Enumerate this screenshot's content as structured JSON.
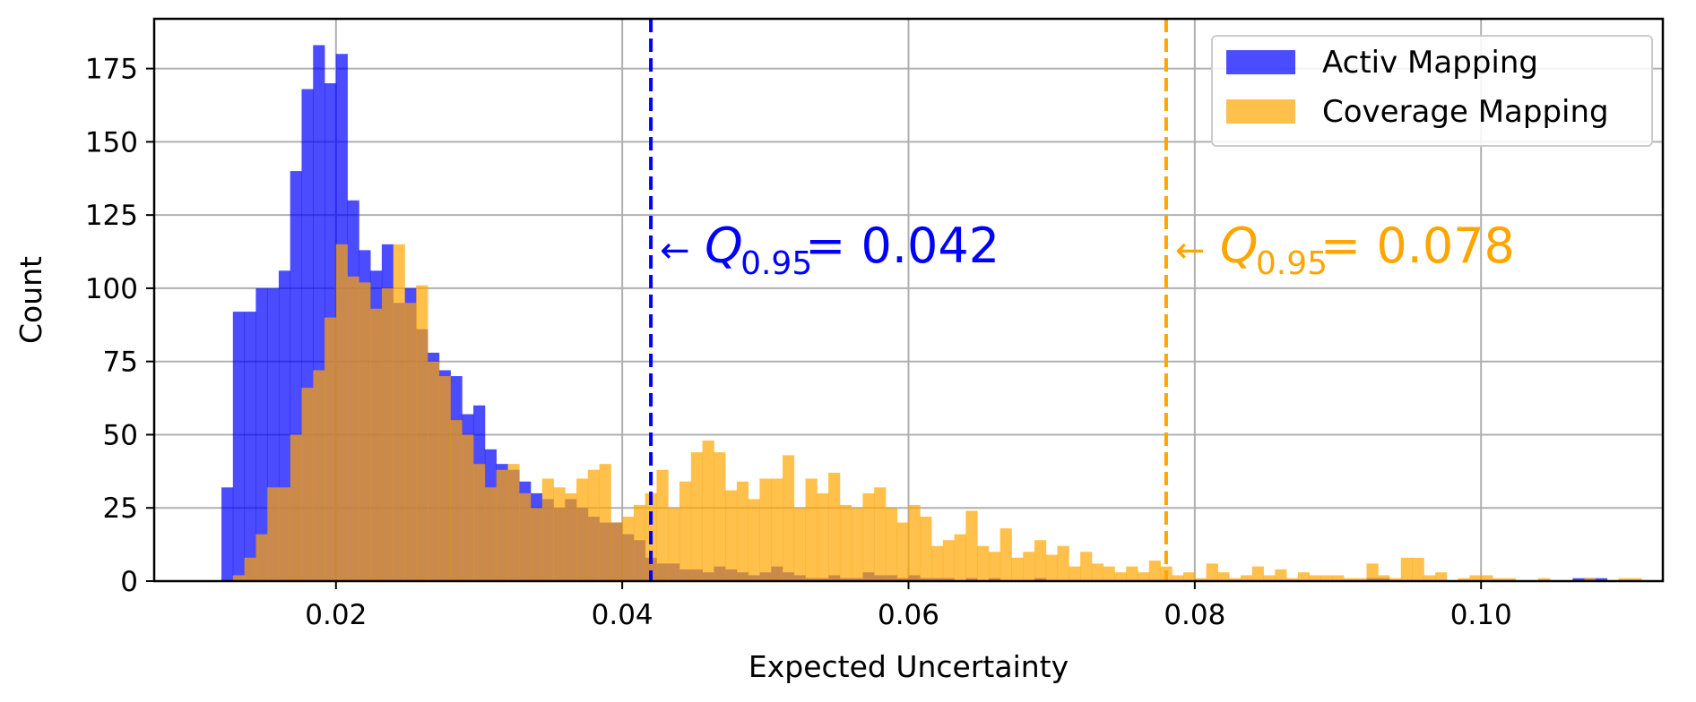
{
  "chart_data": {
    "type": "histogram",
    "xlabel": "Expected Uncertainty",
    "ylabel": "Count",
    "xlim": [
      0.0073,
      0.1127
    ],
    "ylim": [
      0,
      192
    ],
    "xticks": [
      0.02,
      0.04,
      0.06,
      0.08,
      0.1
    ],
    "xtick_labels": [
      "0.02",
      "0.04",
      "0.06",
      "0.08",
      "0.10"
    ],
    "yticks": [
      0,
      25,
      50,
      75,
      100,
      125,
      150,
      175
    ],
    "ytick_labels": [
      "0",
      "25",
      "50",
      "75",
      "100",
      "125",
      "150",
      "175"
    ],
    "grid": true,
    "legend_position": "top-right",
    "bin_width": 0.0008,
    "series": [
      {
        "name": "Activ Mapping",
        "color": "#0000ff",
        "opacity": 0.7,
        "start": 0.012,
        "counts": [
          32,
          92,
          92,
          100,
          100,
          106,
          140,
          168,
          183,
          170,
          180,
          130,
          113,
          106,
          115,
          95,
          100,
          86,
          78,
          72,
          70,
          57,
          60,
          45,
          40,
          38,
          34,
          30,
          28,
          25,
          28,
          25,
          22,
          20,
          20,
          16,
          14,
          8,
          6,
          6,
          4,
          4,
          3,
          5,
          4,
          3,
          2,
          3,
          5,
          3,
          2,
          1,
          1,
          2,
          1,
          1,
          3,
          2,
          2,
          1,
          2,
          1,
          1,
          1,
          0,
          1,
          0,
          1,
          0,
          0,
          0,
          1,
          0,
          0,
          0,
          0,
          0,
          0,
          0,
          0,
          0,
          0,
          0,
          0,
          0,
          0,
          0,
          0,
          0,
          0,
          0,
          0,
          0,
          0,
          0,
          0,
          0,
          0,
          0,
          0,
          1,
          1,
          0,
          0,
          0,
          0,
          0,
          0,
          0,
          0,
          0,
          0,
          0,
          0,
          0,
          0,
          0,
          0,
          1,
          1,
          1
        ],
        "quantile_label": "Q",
        "quantile_subscript": "0.95",
        "quantile_value": "= 0.042",
        "quantile_x": 0.042
      },
      {
        "name": "Coverage Mapping",
        "color": "#ffa500",
        "opacity": 0.7,
        "start": 0.012,
        "counts": [
          0,
          2,
          8,
          16,
          32,
          32,
          50,
          66,
          72,
          90,
          115,
          104,
          102,
          93,
          100,
          115,
          95,
          101,
          75,
          70,
          55,
          50,
          40,
          32,
          38,
          40,
          30,
          25,
          35,
          32,
          30,
          35,
          38,
          40,
          20,
          22,
          26,
          30,
          38,
          25,
          34,
          44,
          48,
          44,
          31,
          34,
          28,
          35,
          35,
          43,
          25,
          35,
          30,
          37,
          26,
          25,
          30,
          32,
          25,
          20,
          26,
          22,
          12,
          14,
          16,
          24,
          12,
          10,
          18,
          8,
          10,
          14,
          9,
          12,
          5,
          10,
          6,
          5,
          3,
          5,
          3,
          7,
          5,
          2,
          3,
          1,
          6,
          3,
          1,
          2,
          5,
          2,
          4,
          1,
          3,
          2,
          2,
          2,
          1,
          1,
          6,
          2,
          1,
          8,
          8,
          2,
          3,
          0,
          1,
          2,
          2,
          1,
          1,
          0,
          0,
          1,
          0,
          0,
          0,
          1,
          0,
          0,
          1,
          1,
          0,
          0,
          0
        ]
      }
    ],
    "annotations": [
      {
        "arrow": "←",
        "text": "Q",
        "subscript": "0.95",
        "value": "= 0.042",
        "color": "#0000ff",
        "x": 0.042
      },
      {
        "arrow": "←",
        "text": "Q",
        "subscript": "0.95",
        "value": "= 0.078",
        "color": "#ffa500",
        "x": 0.078
      }
    ]
  }
}
